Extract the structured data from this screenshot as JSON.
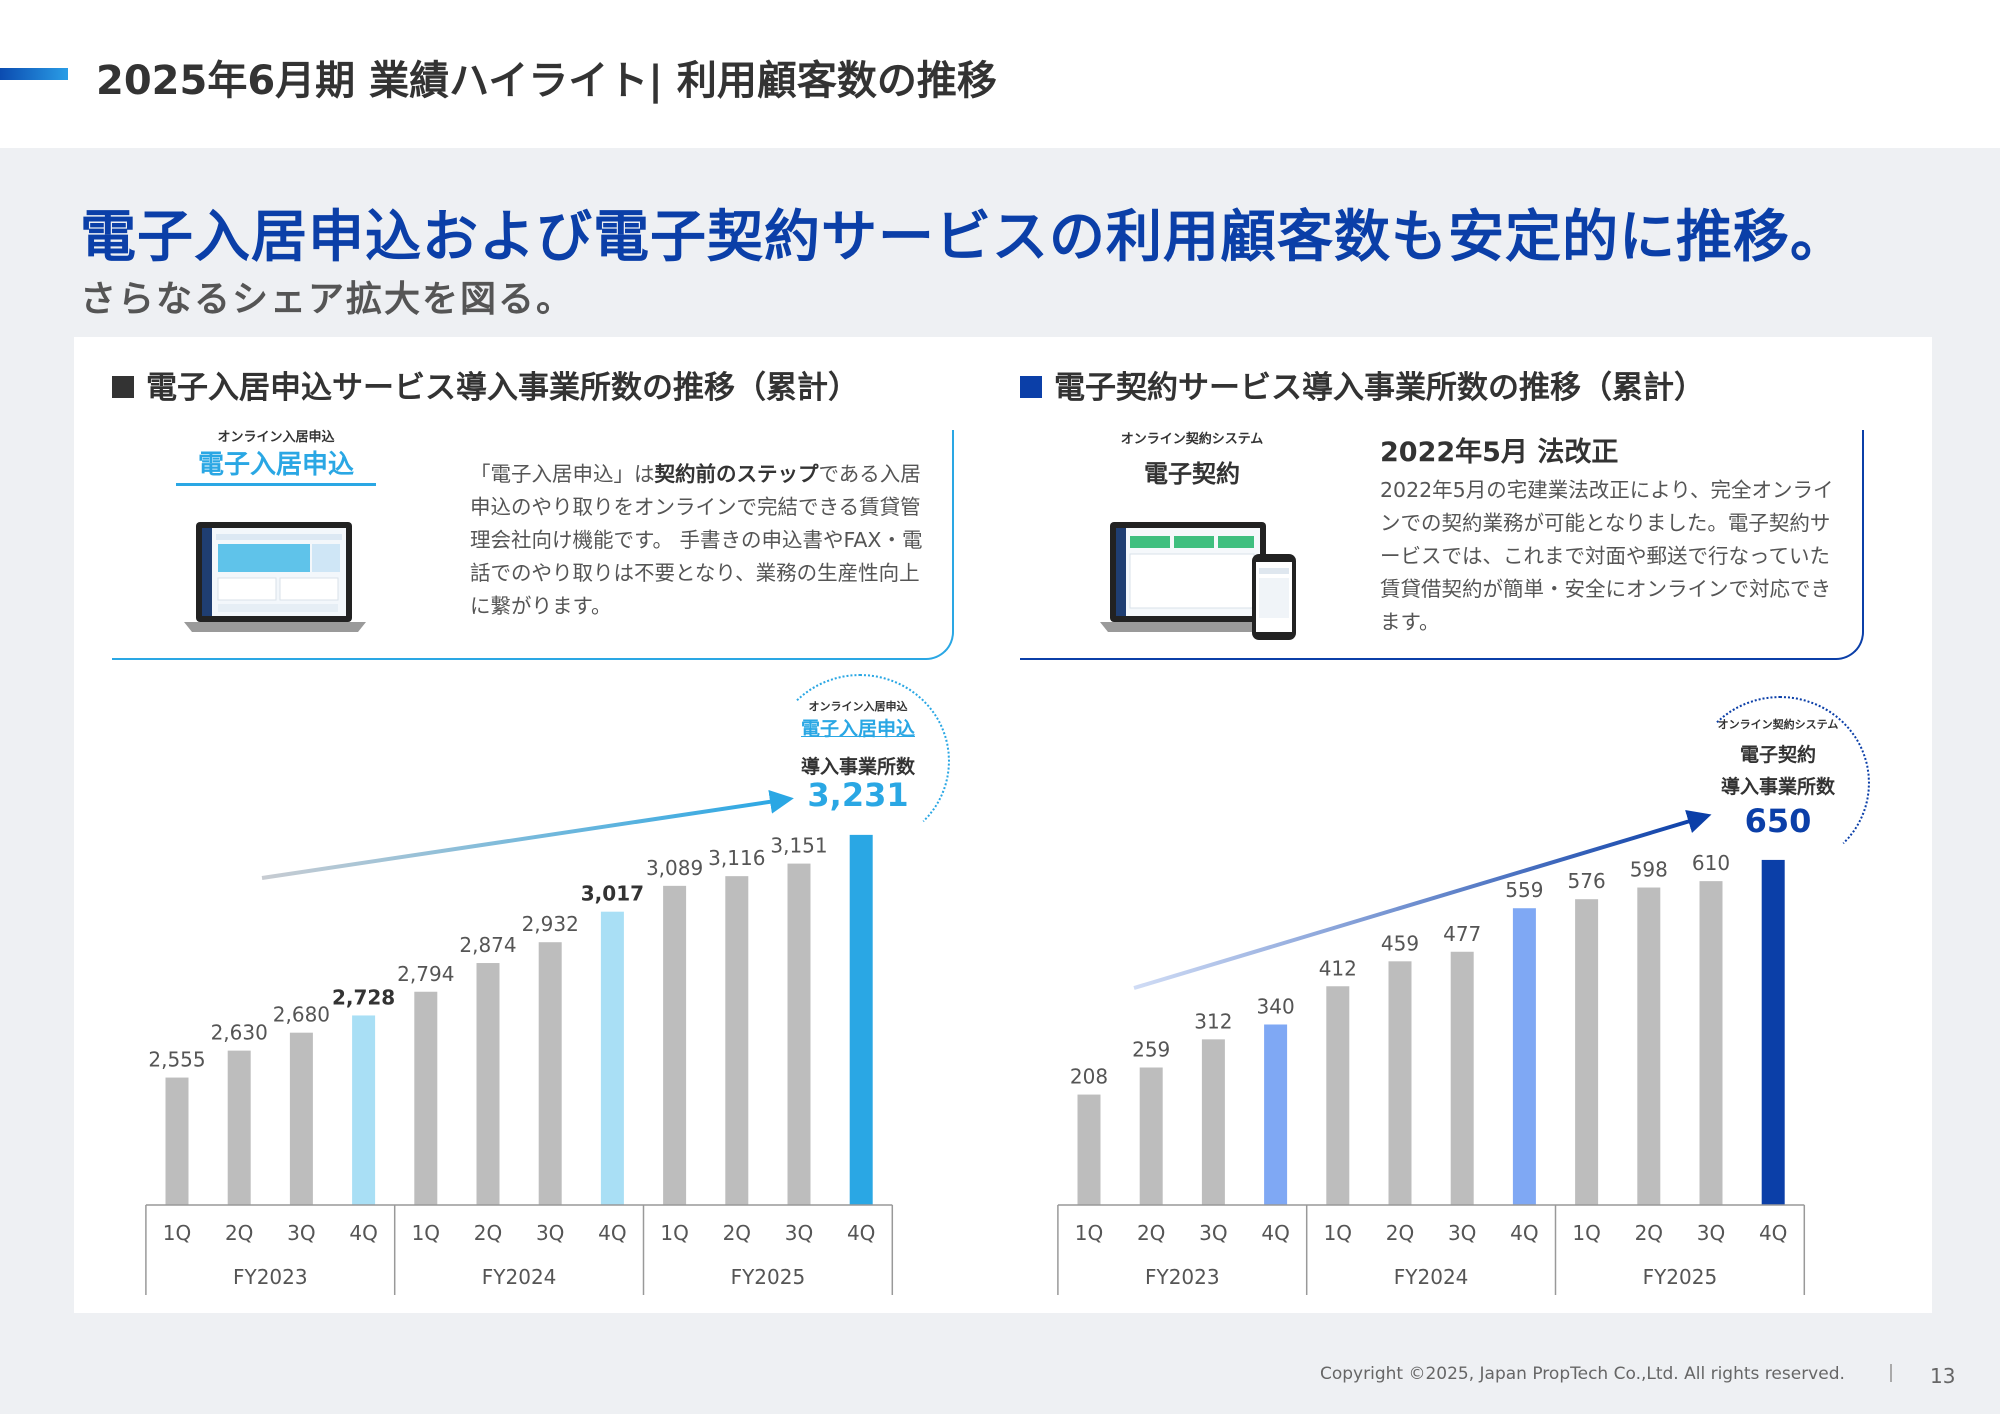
{
  "header": {
    "title": "2025年6月期 業績ハイライト| 利用顧客数の推移"
  },
  "headline": "電子入居申込および電子契約サービスの利用顧客数も安定的に推移。",
  "subheadline": "さらなるシェア拡大を図る。",
  "left": {
    "section_title": "電子入居申込サービス導入事業所数の推移（累計）",
    "product_caption": "オンライン入居申込",
    "product_name": "電子入居申込",
    "desc_1": "「電子入居申込」は",
    "desc_bold": "契約前のステップ",
    "desc_2": "である入居申込のやり取りをオンラインで完結できる賃貸管理会社向け機能です。 手書きの申込書やFAX・電話でのやり取りは不要となり、業務の生産性向上に繋がります。",
    "callout": {
      "caption": "オンライン入居申込",
      "name": "電子入居申込",
      "label": "導入事業所数",
      "value": "3,231"
    }
  },
  "right": {
    "section_title": "電子契約サービス導入事業所数の推移（累計）",
    "product_caption": "オンライン契約システム",
    "product_name": "電子契約",
    "law_title": "2022年5月 法改正",
    "desc": "2022年5月の宅建業法改正により、完全オンラインでの契約業務が可能となりました。電子契約サービスでは、これまで対面や郵送で行なっていた賃貸借契約が簡単・安全にオンラインで対応できます。",
    "callout": {
      "caption": "オンライン契約システム",
      "name": "電子契約",
      "label": "導入事業所数",
      "value": "650"
    }
  },
  "colors": {
    "gray": "#bdbdbd",
    "left_light": "#a9dff5",
    "left_accent": "#2aa7e4",
    "right_light": "#7fa8f4",
    "right_accent": "#0b3fa8"
  },
  "chart_data": [
    {
      "type": "bar",
      "categories": [
        "1Q",
        "2Q",
        "3Q",
        "4Q",
        "1Q",
        "2Q",
        "3Q",
        "4Q",
        "1Q",
        "2Q",
        "3Q",
        "4Q"
      ],
      "groups": [
        "FY2023",
        "FY2024",
        "FY2025"
      ],
      "values": [
        2555,
        2630,
        2680,
        2728,
        2794,
        2874,
        2932,
        3017,
        3089,
        3116,
        3151,
        3231
      ],
      "labels": [
        "2,555",
        "2,630",
        "2,680",
        "2,728",
        "2,794",
        "2,874",
        "2,932",
        "3,017",
        "3,089",
        "3,116",
        "3,151",
        ""
      ],
      "bold_labels": [
        3,
        7
      ],
      "highlight": {
        "light": [
          3,
          7
        ],
        "accent": [
          11
        ]
      }
    },
    {
      "type": "bar",
      "categories": [
        "1Q",
        "2Q",
        "3Q",
        "4Q",
        "1Q",
        "2Q",
        "3Q",
        "4Q",
        "1Q",
        "2Q",
        "3Q",
        "4Q"
      ],
      "groups": [
        "FY2023",
        "FY2024",
        "FY2025"
      ],
      "values": [
        208,
        259,
        312,
        340,
        412,
        459,
        477,
        559,
        576,
        598,
        610,
        650
      ],
      "labels": [
        "208",
        "259",
        "312",
        "340",
        "412",
        "459",
        "477",
        "559",
        "576",
        "598",
        "610",
        ""
      ],
      "bold_labels": [],
      "highlight": {
        "light": [
          3,
          7
        ],
        "accent": [
          11
        ]
      }
    }
  ],
  "footer": {
    "copyright": "Copyright ©2025, Japan PropTech Co.,Ltd. All rights reserved.",
    "page": "13"
  }
}
